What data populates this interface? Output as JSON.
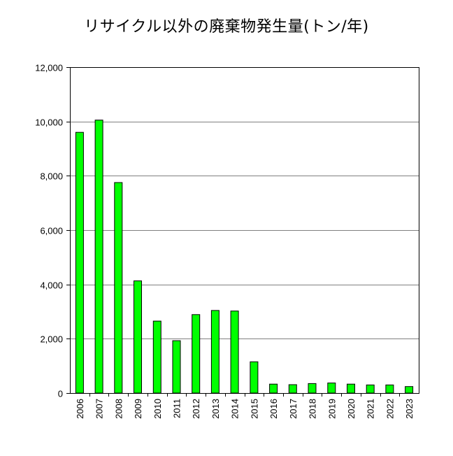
{
  "chart_data": {
    "type": "bar",
    "title": "リサイクル以外の廃棄物発生量(トン/年)",
    "xlabel": "",
    "ylabel": "",
    "categories": [
      "2006",
      "2007",
      "2008",
      "2009",
      "2010",
      "2011",
      "2012",
      "2013",
      "2014",
      "2015",
      "2016",
      "2017",
      "2018",
      "2019",
      "2020",
      "2021",
      "2022",
      "2023"
    ],
    "values": [
      9600,
      10050,
      7750,
      4130,
      2650,
      1930,
      2890,
      3040,
      3020,
      1150,
      330,
      310,
      350,
      370,
      330,
      300,
      300,
      240
    ],
    "ylim": [
      0,
      12000
    ],
    "yticks": [
      0,
      2000,
      4000,
      6000,
      8000,
      10000,
      12000
    ],
    "ytick_labels": [
      "0",
      "2,000",
      "4,000",
      "6,000",
      "8,000",
      "10,000",
      "12,000"
    ],
    "grid": true,
    "legend": "none",
    "bar_color": "#00ff00",
    "bar_outline_color": "#000000",
    "grid_color": "#808080"
  }
}
